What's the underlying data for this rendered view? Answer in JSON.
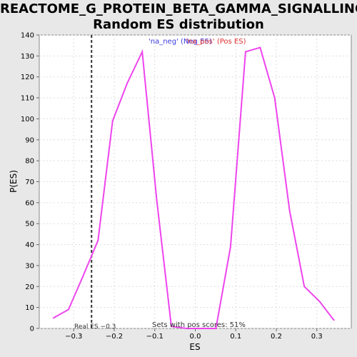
{
  "chart_data": {
    "type": "line",
    "title_line1": "REACTOME_G_PROTEIN_BETA_GAMMA_SIGNALLING:",
    "title_line2": "Random ES distribution",
    "xlabel": "ES",
    "ylabel": "P(ES)",
    "xlim": [
      -0.385,
      0.385
    ],
    "ylim": [
      0,
      140
    ],
    "x_ticks": [
      -0.3,
      -0.2,
      -0.1,
      0.0,
      0.1,
      0.2,
      0.3
    ],
    "x_tick_labels": [
      "−0.3",
      "−0.2",
      "−0.1",
      "0.0",
      "0.1",
      "0.2",
      "0.3"
    ],
    "y_ticks": [
      0,
      10,
      20,
      30,
      40,
      50,
      60,
      70,
      80,
      90,
      100,
      110,
      120,
      130,
      140
    ],
    "grid": true,
    "legend": {
      "placement": "top-center",
      "neg_label": "'na_neg' (Neg ES)",
      "pos_label": "'na_pos' (Pos ES)",
      "neg_color": "#3a3adf",
      "pos_color": "#e03030"
    },
    "line_color": "#ee44ee",
    "series": [
      {
        "x": [
          -0.35,
          -0.313,
          -0.277,
          -0.24,
          -0.204,
          -0.168,
          -0.131,
          -0.095,
          -0.059,
          -0.022,
          0.014,
          0.051,
          0.087,
          0.124,
          0.16,
          0.196,
          0.233,
          0.269,
          0.306,
          0.342
        ],
        "values": [
          5,
          9,
          25,
          42,
          99,
          117,
          132,
          61,
          1,
          0,
          0,
          0,
          39,
          132,
          134,
          110,
          56,
          20,
          13,
          4
        ]
      }
    ],
    "real_es": {
      "x": -0.256,
      "label": "Real ES −0.3"
    },
    "pos_scores_label": "Sets with pos scores: 51%"
  }
}
